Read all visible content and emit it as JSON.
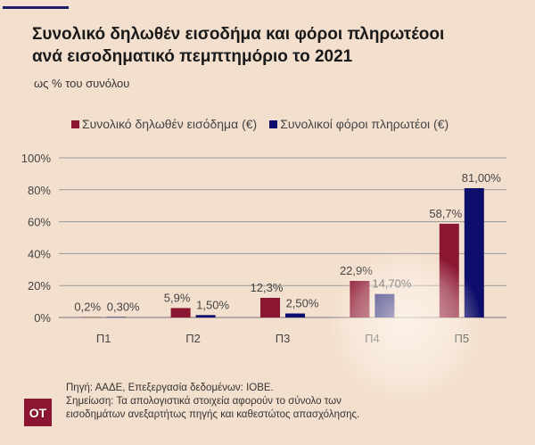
{
  "title_lines": [
    "Συνολικό δηλωθέν εισοδήμα και φόροι πληρωτέοοι",
    "ανά εισοδηματικό πεμπτημόριο το 2021"
  ],
  "subtitle": "ως % του συνόλου",
  "colors": {
    "income": "#8b1632",
    "tax": "#0d0d6b",
    "background": "#f3dfcd"
  },
  "chart_data": {
    "type": "bar",
    "categories": [
      "Π1",
      "Π2",
      "Π3",
      "Π4",
      "Π5"
    ],
    "series": [
      {
        "name": "Συνολικό δηλωθέν εισόδημα (€)",
        "values": [
          0.2,
          5.9,
          12.3,
          22.9,
          58.7
        ],
        "labels": [
          "0,2%",
          "5,9%",
          "12,3%",
          "22,9%",
          "58,7%"
        ]
      },
      {
        "name": "Συνολικοί φόροι πληρωτέοι (€)",
        "values": [
          0.3,
          1.5,
          2.5,
          14.7,
          81.0
        ],
        "labels": [
          "0,30%",
          "1,50%",
          "2,50%",
          "14,70%",
          "81,00%"
        ]
      }
    ],
    "yticks": [
      "0%",
      "20%",
      "40%",
      "60%",
      "80%",
      "100%"
    ],
    "ylim": [
      0,
      100
    ],
    "grid": true,
    "legend": "top"
  },
  "footer": {
    "source": "Πηγή: ΑΑΔΕ, Επεξεργασία δεδομένων: ΙΟΒΕ.",
    "note_lines": [
      "Σημείωση: Τα απολογιστικά στοιχεία αφορούν το σύνολο των",
      "εισοδημάτων ανεξαρτήτως πηγής και καθεστώτος απασχόλησης."
    ],
    "logo": "ΟΤ"
  }
}
